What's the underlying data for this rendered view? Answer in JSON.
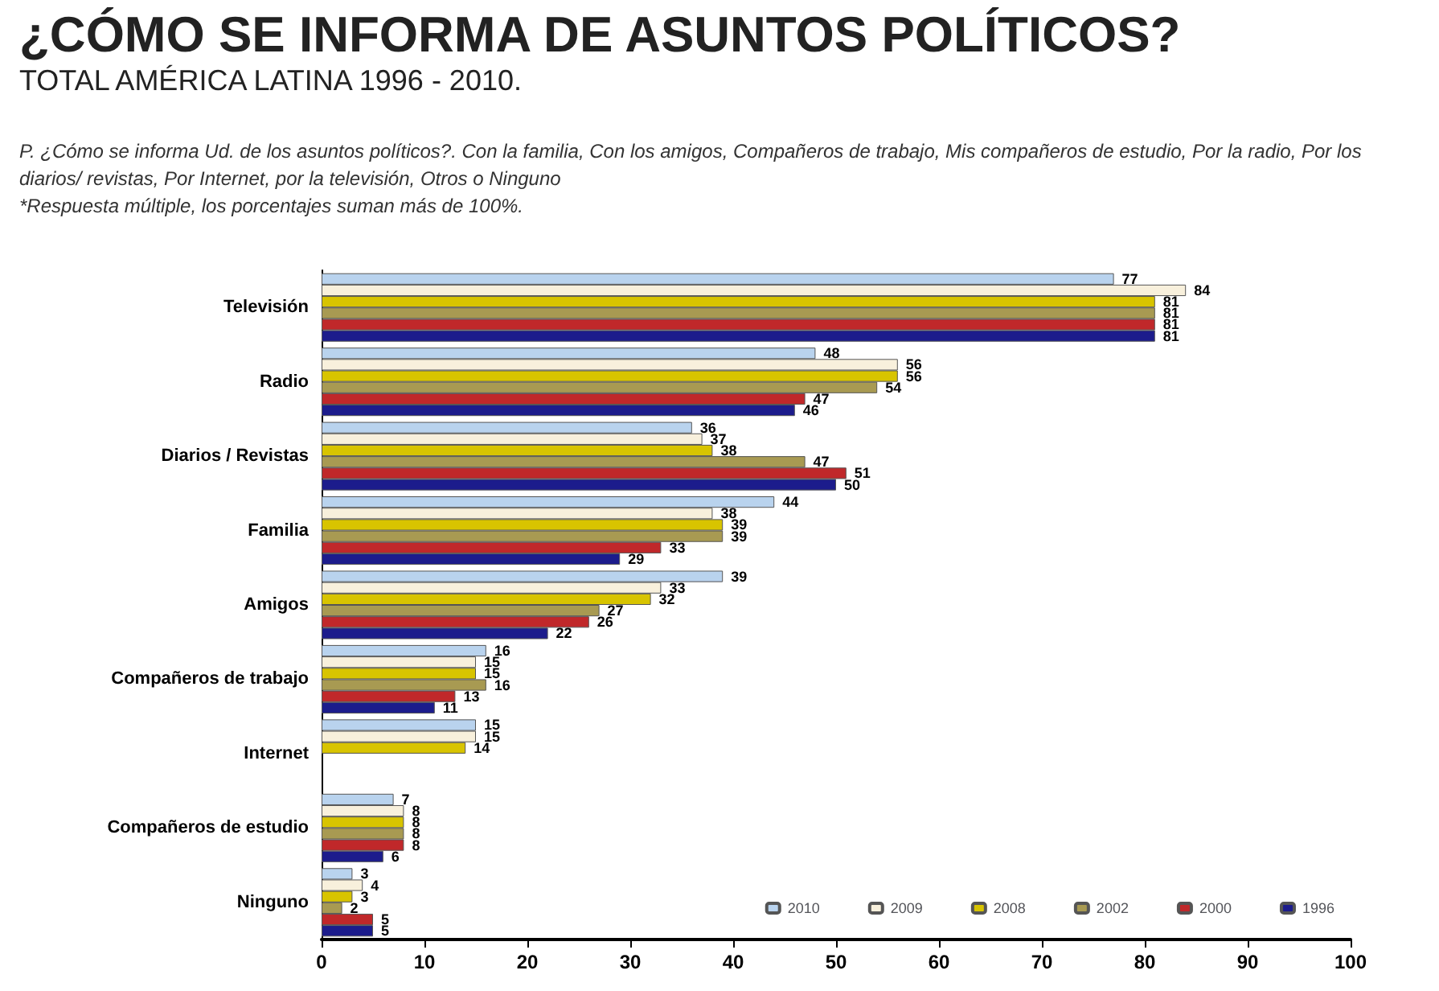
{
  "chart_data": {
    "type": "bar",
    "orientation": "horizontal",
    "title": "¿CÓMO SE INFORMA DE ASUNTOS POLÍTICOS?",
    "subtitle": "TOTAL AMÉRICA LATINA 1996 - 2010.",
    "annotations": [
      "P. ¿Cómo se informa Ud. de los asuntos políticos?. Con la familia, Con los amigos, Compañeros de trabajo, Mis compañeros de estudio, Por la radio, Por los diarios/ revistas, Por Internet, por la televisión, Otros o Ninguno",
      "*Respuesta múltiple, los porcentajes suman más de 100%."
    ],
    "categories": [
      "Televisión",
      "Radio",
      "Diarios / Revistas",
      "Familia",
      "Amigos",
      "Compañeros de trabajo",
      "Internet",
      "Compañeros de estudio",
      "Ninguno"
    ],
    "series": [
      {
        "name": "2010",
        "color": "#b9d3ee",
        "values": [
          77,
          48,
          36,
          44,
          39,
          16,
          15,
          7,
          3
        ]
      },
      {
        "name": "2009",
        "color": "#f8f0dc",
        "values": [
          84,
          56,
          37,
          38,
          33,
          15,
          15,
          8,
          4
        ]
      },
      {
        "name": "2008",
        "color": "#d8c400",
        "values": [
          81,
          56,
          38,
          39,
          32,
          15,
          14,
          8,
          3
        ]
      },
      {
        "name": "2002",
        "color": "#a89a52",
        "values": [
          81,
          54,
          47,
          39,
          27,
          16,
          null,
          8,
          2
        ]
      },
      {
        "name": "2000",
        "color": "#c0282a",
        "values": [
          81,
          47,
          51,
          33,
          26,
          13,
          null,
          8,
          5
        ]
      },
      {
        "name": "1996",
        "color": "#1c1c8c",
        "values": [
          81,
          46,
          50,
          29,
          22,
          11,
          null,
          6,
          5
        ]
      }
    ],
    "xlim": [
      0,
      100
    ],
    "xticks": [
      0,
      10,
      20,
      30,
      40,
      50,
      60,
      70,
      80,
      90,
      100
    ],
    "data_labels": true,
    "legend": "bottom right",
    "grid": false
  }
}
